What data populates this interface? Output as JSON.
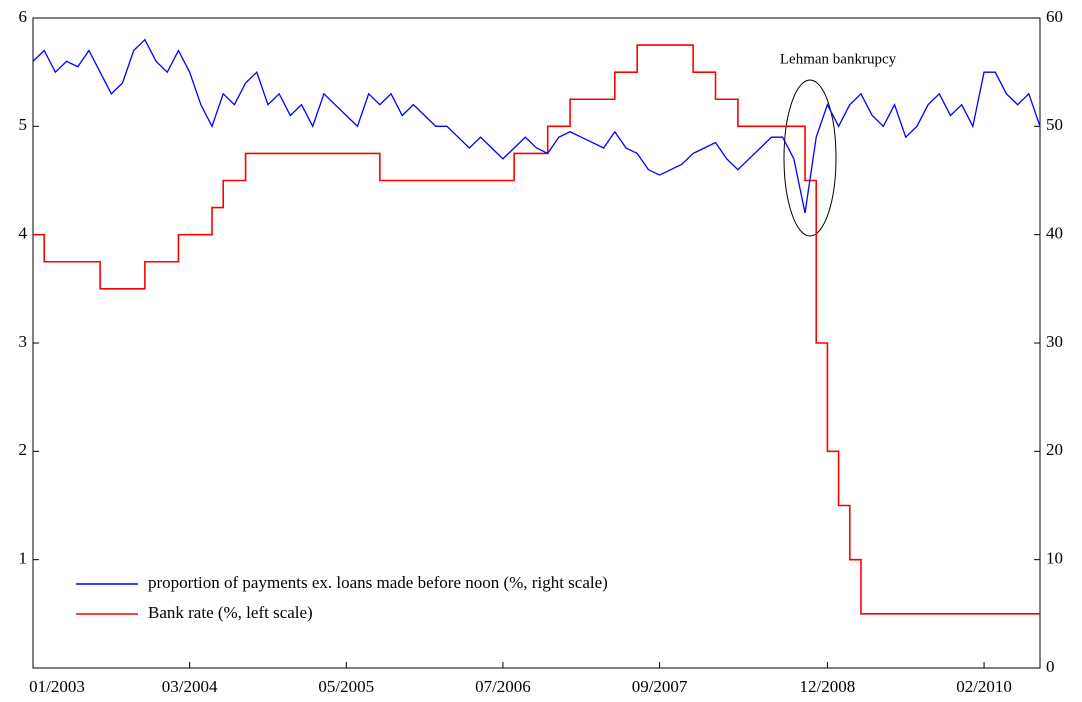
{
  "chart_data": {
    "type": "line",
    "annotation": "Lehman bankrupcy",
    "x": [
      "01/2003",
      "02/2003",
      "03/2003",
      "04/2003",
      "05/2003",
      "06/2003",
      "07/2003",
      "08/2003",
      "09/2003",
      "10/2003",
      "11/2003",
      "12/2003",
      "01/2004",
      "02/2004",
      "03/2004",
      "04/2004",
      "05/2004",
      "06/2004",
      "07/2004",
      "08/2004",
      "09/2004",
      "10/2004",
      "11/2004",
      "12/2004",
      "01/2005",
      "02/2005",
      "03/2005",
      "04/2005",
      "05/2005",
      "06/2005",
      "07/2005",
      "08/2005",
      "09/2005",
      "10/2005",
      "11/2005",
      "12/2005",
      "01/2006",
      "02/2006",
      "03/2006",
      "04/2006",
      "05/2006",
      "06/2006",
      "07/2006",
      "08/2006",
      "09/2006",
      "10/2006",
      "11/2006",
      "12/2006",
      "01/2007",
      "02/2007",
      "03/2007",
      "04/2007",
      "05/2007",
      "06/2007",
      "07/2007",
      "08/2007",
      "09/2007",
      "10/2007",
      "11/2007",
      "12/2007",
      "01/2008",
      "02/2008",
      "03/2008",
      "04/2008",
      "05/2008",
      "06/2008",
      "07/2008",
      "08/2008",
      "09/2008",
      "10/2008",
      "11/2008",
      "12/2008",
      "01/2009",
      "02/2009",
      "03/2009",
      "04/2009",
      "05/2009",
      "06/2009",
      "07/2009",
      "08/2009",
      "09/2009",
      "10/2009",
      "11/2009",
      "12/2009",
      "01/2010",
      "02/2010",
      "03/2010",
      "04/2010",
      "05/2010",
      "06/2010",
      "07/2010"
    ],
    "series": [
      {
        "name": "proportion of payments ex. loans made before noon (%, right scale)",
        "color": "#0000ff",
        "axis": "y2",
        "step": false,
        "values": [
          56,
          57,
          55,
          56,
          55.5,
          57,
          55,
          53,
          54,
          57,
          58,
          56,
          55,
          57,
          55,
          52,
          50,
          53,
          52,
          54,
          55,
          52,
          53,
          51,
          52,
          50,
          53,
          52,
          51,
          50,
          53,
          52,
          53,
          51,
          52,
          51,
          50,
          50,
          49,
          48,
          49,
          48,
          47,
          48,
          49,
          48,
          47.5,
          49,
          49.5,
          49,
          48.5,
          48,
          49.5,
          48,
          47.5,
          46,
          45.5,
          46,
          46.5,
          47.5,
          48,
          48.5,
          47,
          46,
          47,
          48,
          49,
          49,
          47,
          42,
          49,
          52,
          50,
          52,
          53,
          51,
          50,
          52,
          49,
          50,
          52,
          53,
          51,
          52,
          50,
          55,
          55,
          53,
          52,
          53,
          50
        ]
      },
      {
        "name": "Bank rate (%, left scale)",
        "color": "#ff0000",
        "axis": "y",
        "step": true,
        "values": [
          4,
          3.75,
          3.75,
          3.75,
          3.75,
          3.75,
          3.5,
          3.5,
          3.5,
          3.5,
          3.75,
          3.75,
          3.75,
          4,
          4,
          4,
          4.25,
          4.5,
          4.5,
          4.75,
          4.75,
          4.75,
          4.75,
          4.75,
          4.75,
          4.75,
          4.75,
          4.75,
          4.75,
          4.75,
          4.75,
          4.5,
          4.5,
          4.5,
          4.5,
          4.5,
          4.5,
          4.5,
          4.5,
          4.5,
          4.5,
          4.5,
          4.5,
          4.75,
          4.75,
          4.75,
          5,
          5,
          5.25,
          5.25,
          5.25,
          5.25,
          5.5,
          5.5,
          5.75,
          5.75,
          5.75,
          5.75,
          5.75,
          5.5,
          5.5,
          5.25,
          5.25,
          5,
          5,
          5,
          5,
          5,
          5,
          4.5,
          3,
          2,
          1.5,
          1,
          0.5,
          0.5,
          0.5,
          0.5,
          0.5,
          0.5,
          0.5,
          0.5,
          0.5,
          0.5,
          0.5,
          0.5,
          0.5,
          0.5,
          0.5,
          0.5,
          0.5
        ]
      }
    ],
    "xlim": [
      "01/2003",
      "07/2010"
    ],
    "xticks": [
      "01/2003",
      "03/2004",
      "05/2005",
      "07/2006",
      "09/2007",
      "12/2008",
      "02/2010"
    ],
    "ylim": [
      0,
      6
    ],
    "yticks": [
      1,
      2,
      3,
      4,
      5,
      6
    ],
    "y2lim": [
      0,
      60
    ],
    "y2ticks": [
      0,
      10,
      20,
      30,
      40,
      50,
      60
    ],
    "legend": "lower left"
  }
}
